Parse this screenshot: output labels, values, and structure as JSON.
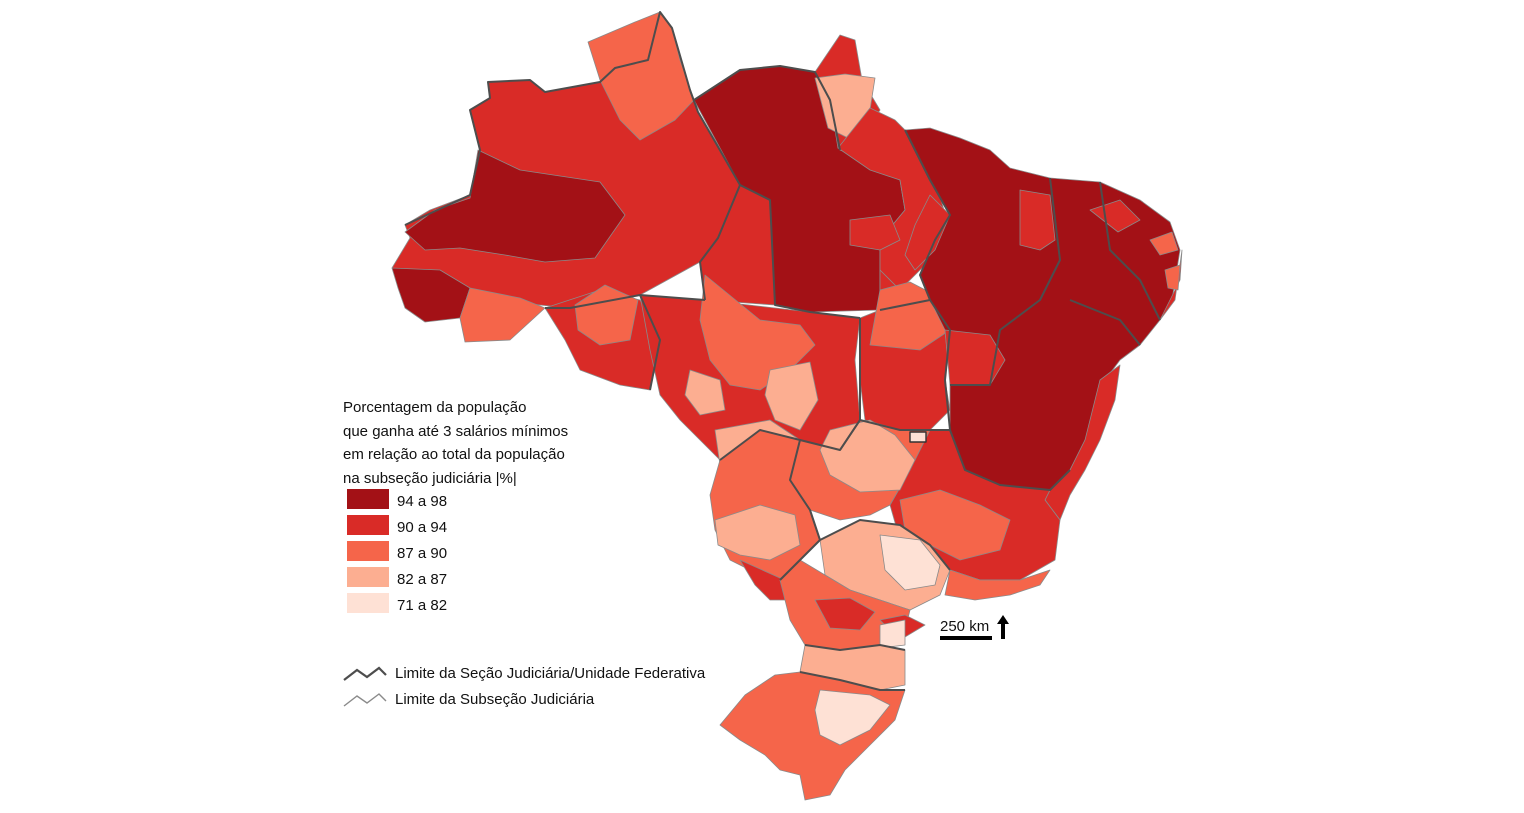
{
  "legend": {
    "title_lines": [
      "Porcentagem da população",
      "que ganha até 3 salários mínimos",
      "em relação ao total da população",
      "na subseção judiciária |%|"
    ],
    "classes": [
      {
        "label": "94 a 98",
        "color": "#a31116"
      },
      {
        "label": "90 a 94",
        "color": "#d92b27"
      },
      {
        "label": "87 a 90",
        "color": "#f5654a"
      },
      {
        "label": "82 a 87",
        "color": "#fcae91"
      },
      {
        "label": "71 a 82",
        "color": "#fee1d5"
      }
    ]
  },
  "boundaries": {
    "state": {
      "label": "Limite da Seção Judiciária/Unidade Federativa",
      "color": "#4d4d4d"
    },
    "subsection": {
      "label": "Limite da Subseção Judiciária",
      "color": "#8a8a8a"
    }
  },
  "scale": {
    "label": "250 km",
    "icon": "north-arrow-icon"
  }
}
